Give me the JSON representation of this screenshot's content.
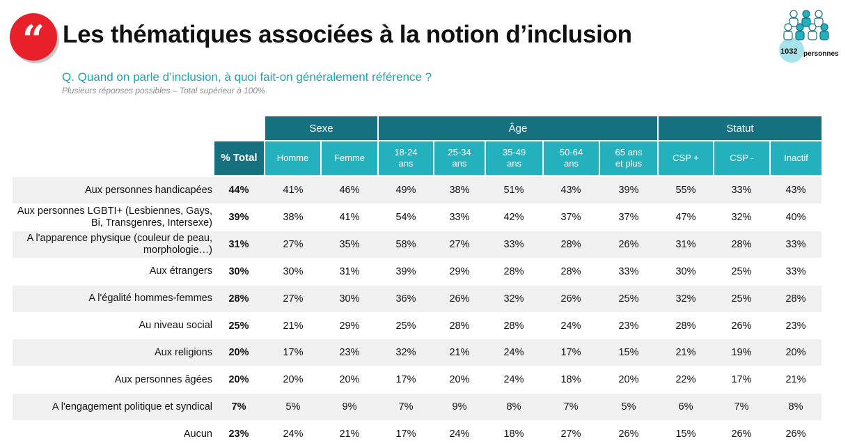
{
  "header": {
    "quote_glyph": "“",
    "title": "Les thématiques associées à la notion d’inclusion",
    "question": "Q. Quand on parle d’inclusion, à quoi fait-on généralement référence ?",
    "note": "Plusieurs réponses possibles – Total supérieur à 100%"
  },
  "sample": {
    "count": "1032",
    "label": "personnes",
    "icon": "people-group-icon",
    "color": "#a6e3ea"
  },
  "colors": {
    "dark_teal": "#15717f",
    "teal": "#23b1bd",
    "accent_red": "#e8202a",
    "question_teal": "#1aa5b3"
  },
  "table": {
    "groups": [
      "Sexe",
      "Âge",
      "Statut"
    ],
    "total_header": "% Total",
    "columns": [
      "Homme",
      "Femme",
      "18-24 ans",
      "25-34 ans",
      "35-49 ans",
      "50-64 ans",
      "65 ans et plus",
      "CSP +",
      "CSP -",
      "Inactif"
    ],
    "rows": [
      {
        "label": "Aux personnes handicapées",
        "total": "44%",
        "values": [
          "41%",
          "46%",
          "49%",
          "38%",
          "51%",
          "43%",
          "39%",
          "55%",
          "33%",
          "43%"
        ]
      },
      {
        "label": "Aux personnes LGBTI+ (Lesbiennes, Gays, Bi, Transgenres, Intersexe)",
        "total": "39%",
        "values": [
          "38%",
          "41%",
          "54%",
          "33%",
          "42%",
          "37%",
          "37%",
          "47%",
          "32%",
          "40%"
        ]
      },
      {
        "label": "A l'apparence physique (couleur de peau, morphologie…)",
        "total": "31%",
        "values": [
          "27%",
          "35%",
          "58%",
          "27%",
          "33%",
          "28%",
          "26%",
          "31%",
          "28%",
          "33%"
        ]
      },
      {
        "label": "Aux étrangers",
        "total": "30%",
        "values": [
          "30%",
          "31%",
          "39%",
          "29%",
          "28%",
          "28%",
          "33%",
          "30%",
          "25%",
          "33%"
        ]
      },
      {
        "label": "A l'égalité hommes-femmes",
        "total": "28%",
        "values": [
          "27%",
          "30%",
          "36%",
          "26%",
          "32%",
          "26%",
          "25%",
          "32%",
          "25%",
          "28%"
        ]
      },
      {
        "label": "Au niveau social",
        "total": "25%",
        "values": [
          "21%",
          "29%",
          "25%",
          "28%",
          "28%",
          "24%",
          "23%",
          "28%",
          "26%",
          "23%"
        ]
      },
      {
        "label": "Aux religions",
        "total": "20%",
        "values": [
          "17%",
          "23%",
          "32%",
          "21%",
          "24%",
          "17%",
          "15%",
          "21%",
          "19%",
          "20%"
        ]
      },
      {
        "label": "Aux personnes âgées",
        "total": "20%",
        "values": [
          "20%",
          "20%",
          "17%",
          "20%",
          "24%",
          "18%",
          "20%",
          "22%",
          "17%",
          "21%"
        ]
      },
      {
        "label": "A l'engagement politique et syndical",
        "total": "7%",
        "values": [
          "5%",
          "9%",
          "7%",
          "9%",
          "8%",
          "7%",
          "5%",
          "6%",
          "7%",
          "8%"
        ]
      },
      {
        "label": "Aucun",
        "total": "23%",
        "values": [
          "24%",
          "21%",
          "17%",
          "24%",
          "18%",
          "27%",
          "26%",
          "15%",
          "26%",
          "26%"
        ]
      }
    ]
  }
}
